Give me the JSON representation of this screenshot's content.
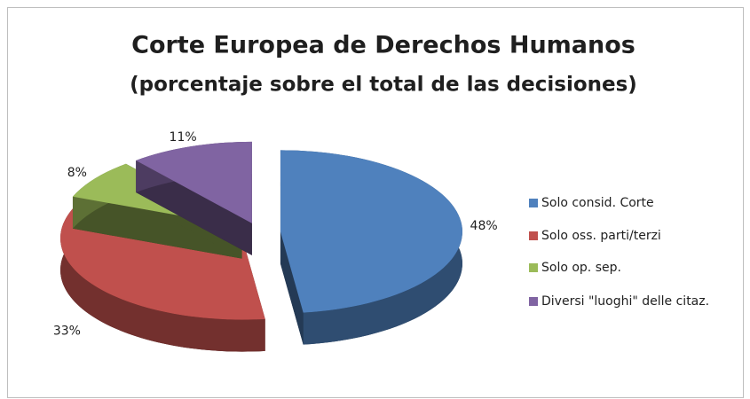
{
  "chart_data": {
    "type": "pie3d",
    "title": "Corte Europea de Derechos Humanos",
    "subtitle": "(porcentaje sobre el total de las decisiones)",
    "categories": [
      "Solo consid. Corte",
      "Solo oss. parti/terzi",
      "Solo op. sep.",
      "Diversi \"luoghi\" delle citaz."
    ],
    "values": [
      48,
      33,
      8,
      11
    ],
    "value_labels": [
      "48%",
      "33%",
      "8%",
      "11%"
    ],
    "colors": [
      "#4f81bd",
      "#c0504d",
      "#9bbb59",
      "#8064a2"
    ],
    "legend": "right"
  }
}
